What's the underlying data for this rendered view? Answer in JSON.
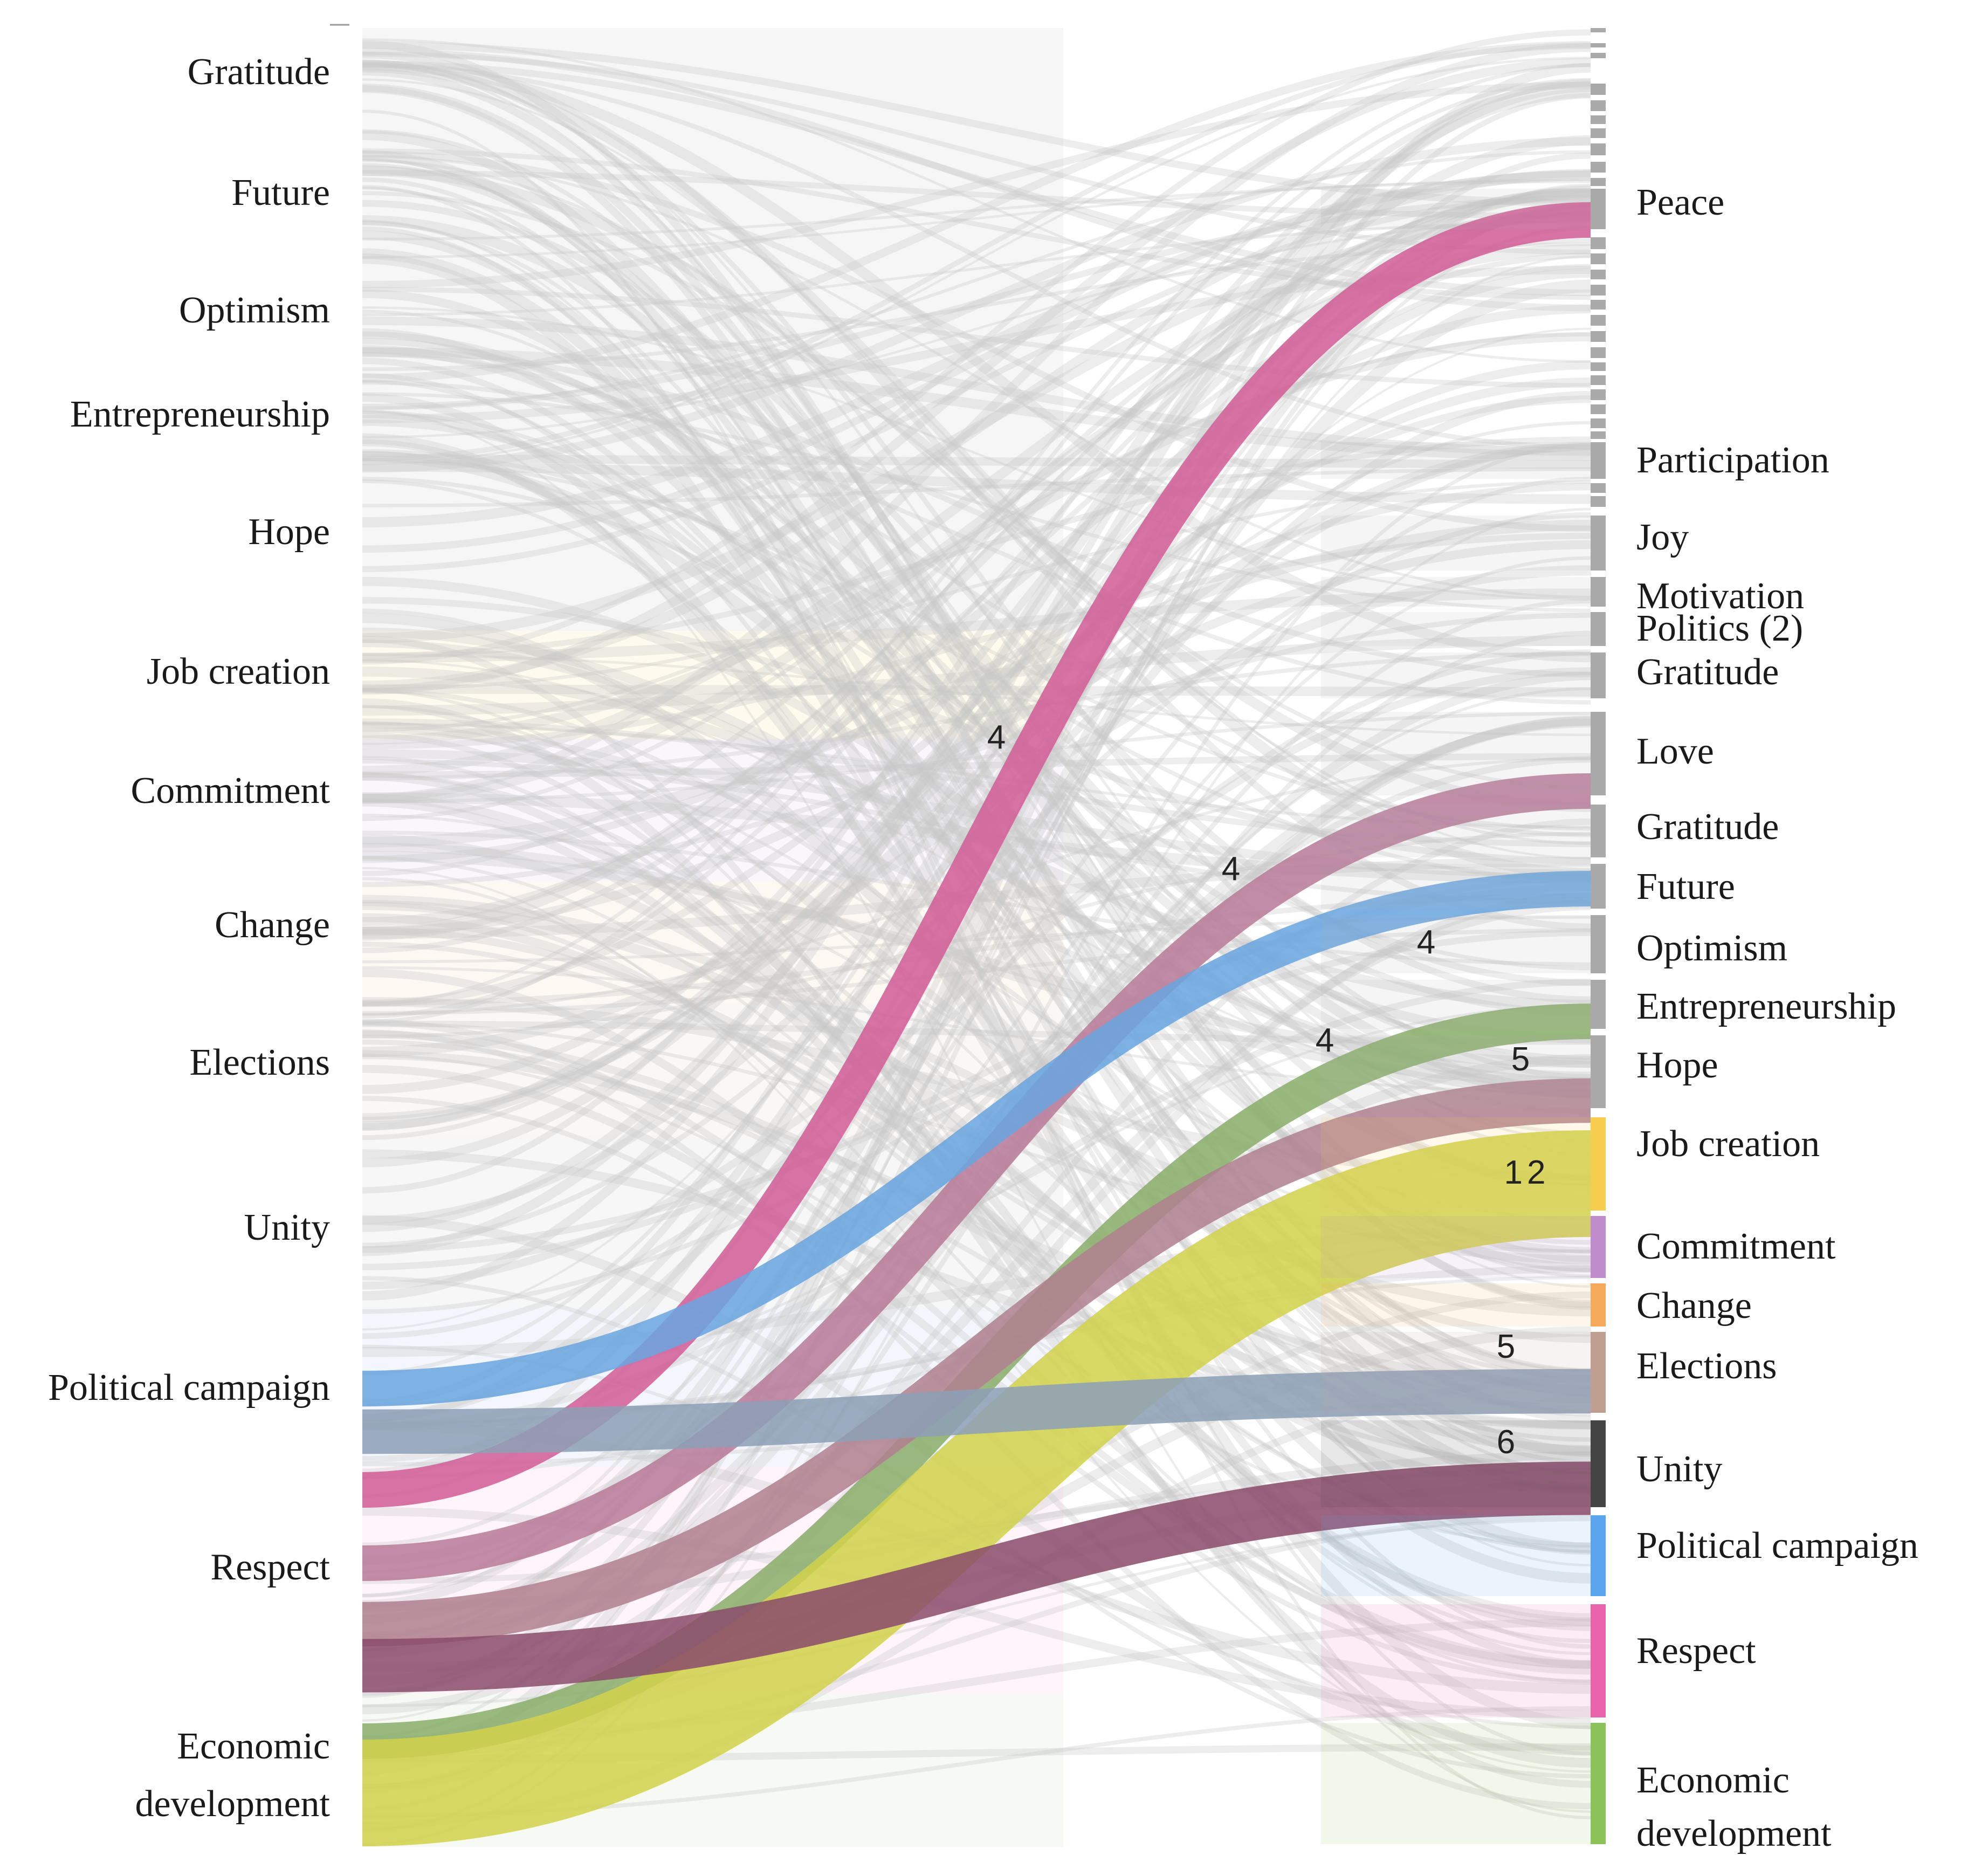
{
  "chart_data": {
    "type": "sankey",
    "left_nodes": [
      {
        "id": "L_gratitude",
        "label": "Gratitude",
        "color": "#e6e6e6"
      },
      {
        "id": "L_future",
        "label": "Future",
        "color": "#e6e6e6"
      },
      {
        "id": "L_optimism",
        "label": "Optimism",
        "color": "#e6e6e6"
      },
      {
        "id": "L_entrepreneurship",
        "label": "Entrepreneurship",
        "color": "#e6e6e6"
      },
      {
        "id": "L_hope",
        "label": "Hope",
        "color": "#e6e6e6"
      },
      {
        "id": "L_jobcreation",
        "label": "Job creation",
        "color": "#fbf3cf"
      },
      {
        "id": "L_commitment",
        "label": "Commitment",
        "color": "#efe6f5"
      },
      {
        "id": "L_change",
        "label": "Change",
        "color": "#fdebdc"
      },
      {
        "id": "L_elections",
        "label": "Elections",
        "color": "#f1ebe7"
      },
      {
        "id": "L_unity",
        "label": "Unity",
        "color": "#e9e9e9"
      },
      {
        "id": "L_politicalcampaign",
        "label": "Political campaign",
        "color": "#dde9fa"
      },
      {
        "id": "L_respect",
        "label": "Respect",
        "color": "#fbe0ee"
      },
      {
        "id": "L_economicdevelopment",
        "label": [
          "Economic",
          "development"
        ],
        "color": "#e7f1df"
      }
    ],
    "right_nodes": [
      {
        "id": "R_peace",
        "label": "Peace",
        "color": "#a9a9a9"
      },
      {
        "id": "R_participation",
        "label": "Participation",
        "color": "#a9a9a9"
      },
      {
        "id": "R_joy",
        "label": "Joy",
        "color": "#a9a9a9"
      },
      {
        "id": "R_motivation",
        "label": "Motivation",
        "color": "#a9a9a9"
      },
      {
        "id": "R_politics2",
        "label": "Politics (2)",
        "color": "#a9a9a9"
      },
      {
        "id": "R_gratitude_a",
        "label": "Gratitude",
        "color": "#a9a9a9"
      },
      {
        "id": "R_love",
        "label": "Love",
        "color": "#a9a9a9"
      },
      {
        "id": "R_gratitude",
        "label": "Gratitude",
        "color": "#a9a9a9"
      },
      {
        "id": "R_future",
        "label": "Future",
        "color": "#a9a9a9"
      },
      {
        "id": "R_optimism",
        "label": "Optimism",
        "color": "#a9a9a9"
      },
      {
        "id": "R_entrepreneurship",
        "label": "Entrepreneurship",
        "color": "#a9a9a9"
      },
      {
        "id": "R_hope",
        "label": "Hope",
        "color": "#a9a9a9"
      },
      {
        "id": "R_jobcreation",
        "label": "Job creation",
        "color": "#f6cd4f"
      },
      {
        "id": "R_commitment",
        "label": "Commitment",
        "color": "#c08ccb"
      },
      {
        "id": "R_change",
        "label": "Change",
        "color": "#f4a95b"
      },
      {
        "id": "R_elections",
        "label": "Elections",
        "color": "#c09f91"
      },
      {
        "id": "R_unity",
        "label": "Unity",
        "color": "#444444"
      },
      {
        "id": "R_politicalcampaign",
        "label": "Political campaign",
        "color": "#5aa5ee"
      },
      {
        "id": "R_respect",
        "label": "Respect",
        "color": "#e863aa"
      },
      {
        "id": "R_economicdevelopment",
        "label": [
          "Economic",
          "development"
        ],
        "color": "#8cc358"
      }
    ],
    "highlighted_links": [
      {
        "source": "L_respect",
        "target": "R_peace",
        "value": 4,
        "value_label": "4",
        "color": "#d25c96"
      },
      {
        "source": "L_respect",
        "target": "R_gratitude",
        "value": 4,
        "value_label": "4",
        "color": "#b87a98"
      },
      {
        "source": "L_politicalcampaign",
        "target": "R_future",
        "value": 4,
        "value_label": "4",
        "color": "#6aa5e0"
      },
      {
        "source": "L_economicdevelopment",
        "target": "R_entrepreneurship",
        "value": 4,
        "value_label": "4",
        "color": "#89ad6a"
      },
      {
        "source": "L_respect",
        "target": "R_hope",
        "value": 5,
        "value_label": "5",
        "color": "#b0808f"
      },
      {
        "source": "L_economicdevelopment",
        "target": "R_jobcreation",
        "value": 12,
        "value_label": "12",
        "color": "#d2d24c"
      },
      {
        "source": "L_politicalcampaign",
        "target": "R_elections",
        "value": 5,
        "value_label": "5",
        "color": "#8d9fb6"
      },
      {
        "source": "L_respect",
        "target": "R_unity",
        "value": 6,
        "value_label": "6",
        "color": "#8a4c6b"
      }
    ],
    "background_links": "many faint links from every left node to the right-hand terms",
    "colors": {
      "grey_node": "#a9a9a9",
      "faint_link": "#c8c8c8"
    }
  }
}
